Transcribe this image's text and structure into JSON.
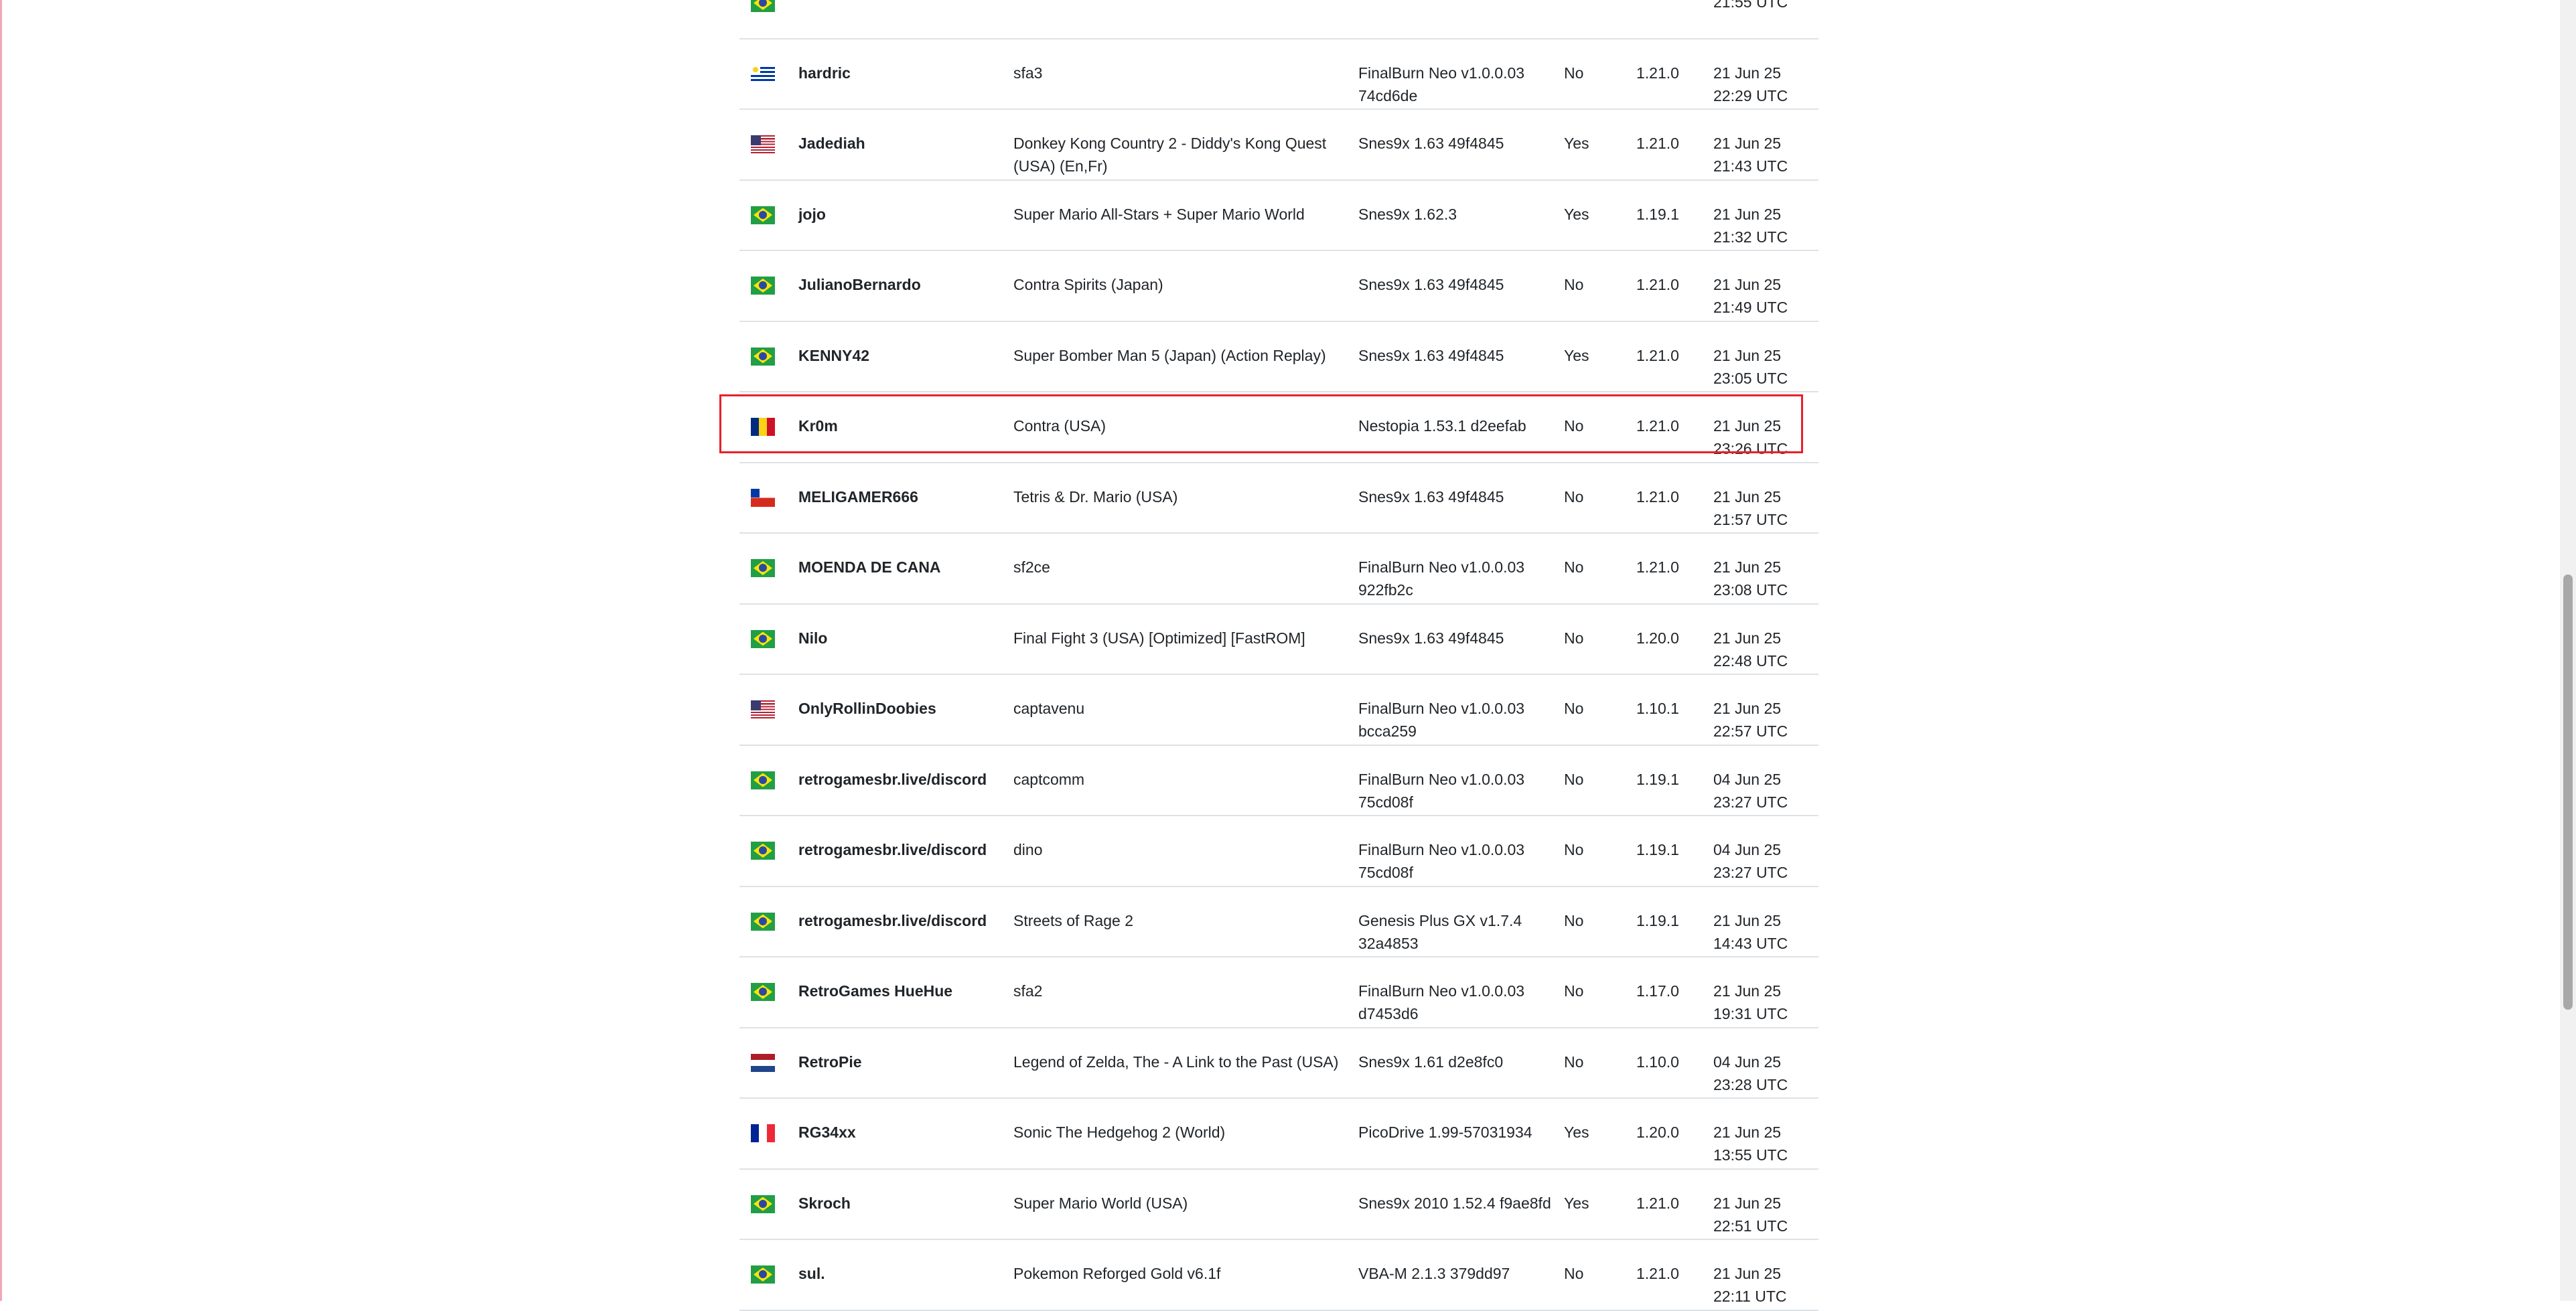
{
  "colors": {
    "highlight": "#e8202a",
    "row_border": "#dee2e6",
    "text": "#212529"
  },
  "rows": [
    {
      "flag": "br",
      "name": "",
      "game": "",
      "core": "",
      "netplay": "",
      "version": "",
      "date": "",
      "time": "21:55 UTC"
    },
    {
      "flag": "uy",
      "name": "hardric",
      "game": "sfa3",
      "core": "FinalBurn Neo v1.0.0.03 74cd6de",
      "netplay": "No",
      "version": "1.21.0",
      "date": "21 Jun 25",
      "time": "22:29 UTC"
    },
    {
      "flag": "us",
      "name": "Jadediah",
      "game": "Donkey Kong Country 2 - Diddy's Kong Quest (USA) (En,Fr)",
      "core": "Snes9x 1.63 49f4845",
      "netplay": "Yes",
      "version": "1.21.0",
      "date": "21 Jun 25",
      "time": "21:43 UTC"
    },
    {
      "flag": "br",
      "name": "jojo",
      "game": "Super Mario All-Stars + Super Mario World",
      "core": "Snes9x 1.62.3",
      "netplay": "Yes",
      "version": "1.19.1",
      "date": "21 Jun 25",
      "time": "21:32 UTC"
    },
    {
      "flag": "br",
      "name": "JulianoBernardo",
      "game": "Contra Spirits (Japan)",
      "core": "Snes9x 1.63 49f4845",
      "netplay": "No",
      "version": "1.21.0",
      "date": "21 Jun 25",
      "time": "21:49 UTC"
    },
    {
      "flag": "br",
      "name": "KENNY42",
      "game": "Super Bomber Man 5 (Japan) (Action Replay)",
      "core": "Snes9x 1.63 49f4845",
      "netplay": "Yes",
      "version": "1.21.0",
      "date": "21 Jun 25",
      "time": "23:05 UTC"
    },
    {
      "flag": "ro",
      "name": "Kr0m",
      "game": "Contra (USA)",
      "core": "Nestopia 1.53.1 d2eefab",
      "netplay": "No",
      "version": "1.21.0",
      "date": "21 Jun 25",
      "time": "23:26 UTC"
    },
    {
      "flag": "cl",
      "name": "MELIGAMER666",
      "game": "Tetris & Dr. Mario (USA)",
      "core": "Snes9x 1.63 49f4845",
      "netplay": "No",
      "version": "1.21.0",
      "date": "21 Jun 25",
      "time": "21:57 UTC"
    },
    {
      "flag": "br",
      "name": "MOENDA DE CANA",
      "game": "sf2ce",
      "core": "FinalBurn Neo v1.0.0.03 922fb2c",
      "netplay": "No",
      "version": "1.21.0",
      "date": "21 Jun 25",
      "time": "23:08 UTC"
    },
    {
      "flag": "br",
      "name": "Nilo",
      "game": "Final Fight 3 (USA) [Optimized] [FastROM]",
      "core": "Snes9x 1.63 49f4845",
      "netplay": "No",
      "version": "1.20.0",
      "date": "21 Jun 25",
      "time": "22:48 UTC"
    },
    {
      "flag": "us",
      "name": "OnlyRollinDoobies",
      "game": "captavenu",
      "core": "FinalBurn Neo v1.0.0.03 bcca259",
      "netplay": "No",
      "version": "1.10.1",
      "date": "21 Jun 25",
      "time": "22:57 UTC"
    },
    {
      "flag": "br",
      "name": "retrogamesbr.live/discord",
      "game": "captcomm",
      "core": "FinalBurn Neo v1.0.0.03 75cd08f",
      "netplay": "No",
      "version": "1.19.1",
      "date": "04 Jun 25",
      "time": "23:27 UTC"
    },
    {
      "flag": "br",
      "name": "retrogamesbr.live/discord",
      "game": "dino",
      "core": "FinalBurn Neo v1.0.0.03 75cd08f",
      "netplay": "No",
      "version": "1.19.1",
      "date": "04 Jun 25",
      "time": "23:27 UTC"
    },
    {
      "flag": "br",
      "name": "retrogamesbr.live/discord",
      "game": "Streets of Rage 2",
      "core": "Genesis Plus GX v1.7.4 32a4853",
      "netplay": "No",
      "version": "1.19.1",
      "date": "21 Jun 25",
      "time": "14:43 UTC"
    },
    {
      "flag": "br",
      "name": "RetroGames HueHue",
      "game": "sfa2",
      "core": "FinalBurn Neo v1.0.0.03 d7453d6",
      "netplay": "No",
      "version": "1.17.0",
      "date": "21 Jun 25",
      "time": "19:31 UTC"
    },
    {
      "flag": "nl",
      "name": "RetroPie",
      "game": "Legend of Zelda, The - A Link to the Past (USA)",
      "core": "Snes9x 1.61 d2e8fc0",
      "netplay": "No",
      "version": "1.10.0",
      "date": "04 Jun 25",
      "time": "23:28 UTC"
    },
    {
      "flag": "fr",
      "name": "RG34xx",
      "game": "Sonic The Hedgehog 2 (World)",
      "core": "PicoDrive 1.99-57031934",
      "netplay": "Yes",
      "version": "1.20.0",
      "date": "21 Jun 25",
      "time": "13:55 UTC"
    },
    {
      "flag": "br",
      "name": "Skroch",
      "game": "Super Mario World (USA)",
      "core": "Snes9x 2010 1.52.4 f9ae8fd",
      "netplay": "Yes",
      "version": "1.21.0",
      "date": "21 Jun 25",
      "time": "22:51 UTC"
    },
    {
      "flag": "br",
      "name": "sul.",
      "game": "Pokemon Reforged Gold v6.1f",
      "core": "VBA-M 2.1.3 379dd97",
      "netplay": "No",
      "version": "1.21.0",
      "date": "21 Jun 25",
      "time": "22:11 UTC"
    }
  ]
}
